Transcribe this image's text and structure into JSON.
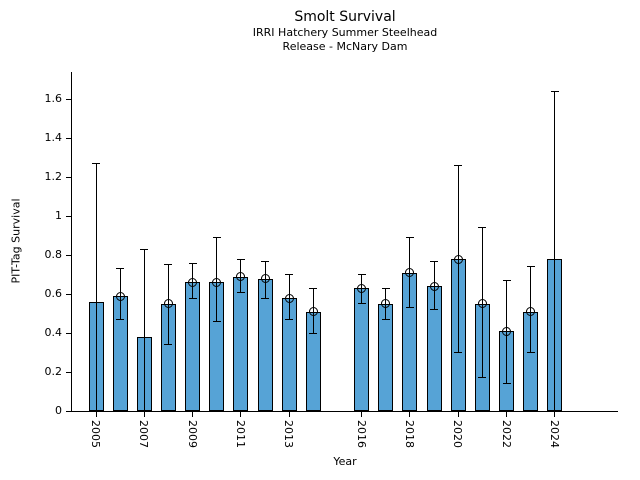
{
  "header": {
    "title": "Smolt Survival",
    "subtitle_line1": "IRRI Hatchery Summer Steelhead",
    "subtitle_line2": "Release - McNary Dam"
  },
  "colors": {
    "bar_fill": "#56A3D6",
    "bar_edge": "#000000",
    "axis": "#000000",
    "text": "#000000",
    "background": "#FFFFFF"
  },
  "chart_data": {
    "type": "bar",
    "title": "Smolt Survival",
    "subtitle": [
      "IRRI Hatchery Summer Steelhead",
      "Release - McNary Dam"
    ],
    "xlabel": "Year",
    "ylabel": "PIT-Tag Survival",
    "ylim": [
      0,
      1.74
    ],
    "yticks": [
      0,
      0.2,
      0.4,
      0.6,
      0.8,
      1,
      1.2,
      1.4,
      1.6
    ],
    "ytick_labels": [
      "0",
      "0.2",
      "0.4",
      "0.6",
      "0.8",
      "1",
      "1.2",
      "1.4",
      "1.6"
    ],
    "xtick_labeled_years": [
      2005,
      2007,
      2009,
      2011,
      2013,
      2016,
      2018,
      2020,
      2022,
      2024
    ],
    "missing_years": [
      2015
    ],
    "grid": false,
    "legend": null,
    "error_bars": true,
    "bars": [
      {
        "year": 2005,
        "value": 0.56,
        "err_low": 0.0,
        "err_high": 1.27,
        "marker": false
      },
      {
        "year": 2006,
        "value": 0.59,
        "err_low": 0.47,
        "err_high": 0.73,
        "marker": true
      },
      {
        "year": 2007,
        "value": 0.38,
        "err_low": 0.0,
        "err_high": 0.83,
        "marker": false
      },
      {
        "year": 2008,
        "value": 0.55,
        "err_low": 0.34,
        "err_high": 0.75,
        "marker": true
      },
      {
        "year": 2009,
        "value": 0.66,
        "err_low": 0.58,
        "err_high": 0.76,
        "marker": true
      },
      {
        "year": 2010,
        "value": 0.66,
        "err_low": 0.46,
        "err_high": 0.89,
        "marker": true
      },
      {
        "year": 2011,
        "value": 0.69,
        "err_low": 0.61,
        "err_high": 0.78,
        "marker": true
      },
      {
        "year": 2012,
        "value": 0.68,
        "err_low": 0.58,
        "err_high": 0.77,
        "marker": true
      },
      {
        "year": 2013,
        "value": 0.58,
        "err_low": 0.47,
        "err_high": 0.7,
        "marker": true
      },
      {
        "year": 2014,
        "value": 0.51,
        "err_low": 0.4,
        "err_high": 0.63,
        "marker": true
      },
      {
        "year": 2016,
        "value": 0.63,
        "err_low": 0.55,
        "err_high": 0.7,
        "marker": true
      },
      {
        "year": 2017,
        "value": 0.55,
        "err_low": 0.47,
        "err_high": 0.63,
        "marker": true
      },
      {
        "year": 2018,
        "value": 0.71,
        "err_low": 0.53,
        "err_high": 0.89,
        "marker": true
      },
      {
        "year": 2019,
        "value": 0.64,
        "err_low": 0.52,
        "err_high": 0.77,
        "marker": true
      },
      {
        "year": 2020,
        "value": 0.78,
        "err_low": 0.3,
        "err_high": 1.26,
        "marker": true
      },
      {
        "year": 2021,
        "value": 0.55,
        "err_low": 0.17,
        "err_high": 0.94,
        "marker": true
      },
      {
        "year": 2022,
        "value": 0.41,
        "err_low": 0.14,
        "err_high": 0.67,
        "marker": true
      },
      {
        "year": 2023,
        "value": 0.51,
        "err_low": 0.3,
        "err_high": 0.74,
        "marker": true
      },
      {
        "year": 2024,
        "value": 0.78,
        "err_low": 0.0,
        "err_high": 1.64,
        "marker": false
      }
    ]
  }
}
